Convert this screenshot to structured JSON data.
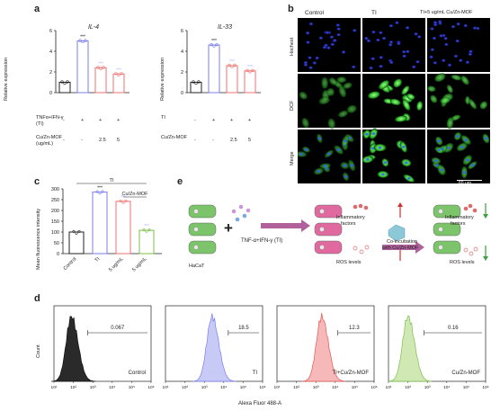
{
  "panel_labels": {
    "a": "a",
    "b": "b",
    "c": "c",
    "d": "d",
    "e": "e"
  },
  "panel_a": {
    "ylabel": "Relative expression",
    "charts": [
      {
        "title": "IL-4",
        "ylim": [
          0,
          6
        ],
        "ticks": [
          "0",
          "2",
          "4",
          "6"
        ],
        "values": [
          1.0,
          5.0,
          2.4,
          1.8
        ],
        "sig": [
          "",
          "***",
          "***",
          "***"
        ]
      },
      {
        "title": "IL-33",
        "ylim": [
          0,
          6
        ],
        "ticks": [
          "0",
          "2",
          "4",
          "6"
        ],
        "values": [
          1.0,
          4.6,
          2.6,
          2.1
        ],
        "sig": [
          "",
          "***",
          "***",
          "***"
        ]
      }
    ],
    "rows": [
      {
        "label": "TNFα+IFN-γ",
        "sub": "(TI)",
        "vals": [
          "-",
          "+",
          "+",
          "+"
        ]
      },
      {
        "label": "Cu/Zn-MOF",
        "sub": "(ug/mL)",
        "vals": [
          "-",
          "-",
          "2.5",
          "5"
        ]
      }
    ],
    "rows_right": [
      {
        "label": "TI",
        "vals": [
          "-",
          "+",
          "+",
          "+"
        ]
      },
      {
        "label": "Cu/Zn-MOF",
        "vals": [
          "-",
          "-",
          "2.5",
          "5"
        ]
      }
    ],
    "colors": [
      "#222222",
      "#7a7df0",
      "#f07070",
      "#f07070"
    ]
  },
  "panel_b": {
    "cols": [
      "Control",
      "TI",
      "TI+5 ug/mL Cu/Zn-MOF"
    ],
    "rows": [
      "Hochest",
      "DCF",
      "Merge"
    ],
    "scale": "60 μm"
  },
  "panel_c": {
    "ylabel": "Mean fluorescence intensity",
    "ylim": [
      0,
      300
    ],
    "ticks": [
      "0",
      "50",
      "100",
      "150",
      "200",
      "250",
      "300"
    ],
    "categories": [
      "Control",
      "TI",
      "5 ug/mL",
      "5 ug/mL"
    ],
    "values": [
      100,
      285,
      242,
      108
    ],
    "colors": [
      "#222222",
      "#7a7df0",
      "#f07070",
      "#7cbf4a"
    ],
    "sig": [
      "",
      "***",
      "***",
      "***"
    ],
    "bracket_ti": "TI",
    "bracket_mof": "Cu/Zn-MOF"
  },
  "panel_e": {
    "cell_label": "HaCaT",
    "treatment": "TNF-α+IFN-γ (TI)",
    "inflam1": "Inflammatory",
    "inflam2": "factors",
    "ros": "ROS levels",
    "coinc1": "Co-incubation",
    "coinc2": "with Cu/Zn-MOF",
    "inflam1_r": "Inflammatory",
    "inflam2_r": "factors",
    "ros_r": "ROS levels",
    "plus": "+"
  },
  "panel_d": {
    "ylabel": "Count",
    "xlabel": "Alexa Fluor 488-A",
    "ticks": [
      "10¹",
      "10²",
      "10³",
      "10⁴",
      "10⁵",
      "10⁶"
    ],
    "histograms": [
      {
        "label": "Control",
        "gate": "0.067",
        "fill": "#2a2a2a",
        "stroke": "#111111",
        "peak": 1.9
      },
      {
        "label": "TI",
        "gate": "18.5",
        "fill": "#c8caf6",
        "stroke": "#7a7df0",
        "peak": 3.4
      },
      {
        "label": "TI+Cu/Zn-MOF",
        "gate": "12.3",
        "fill": "#f6b8b8",
        "stroke": "#e85555",
        "peak": 3.3
      },
      {
        "label": "Cu/Zn-MOF",
        "gate": "0.16",
        "fill": "#cfe8b4",
        "stroke": "#7cbf4a",
        "peak": 2.0
      }
    ]
  }
}
